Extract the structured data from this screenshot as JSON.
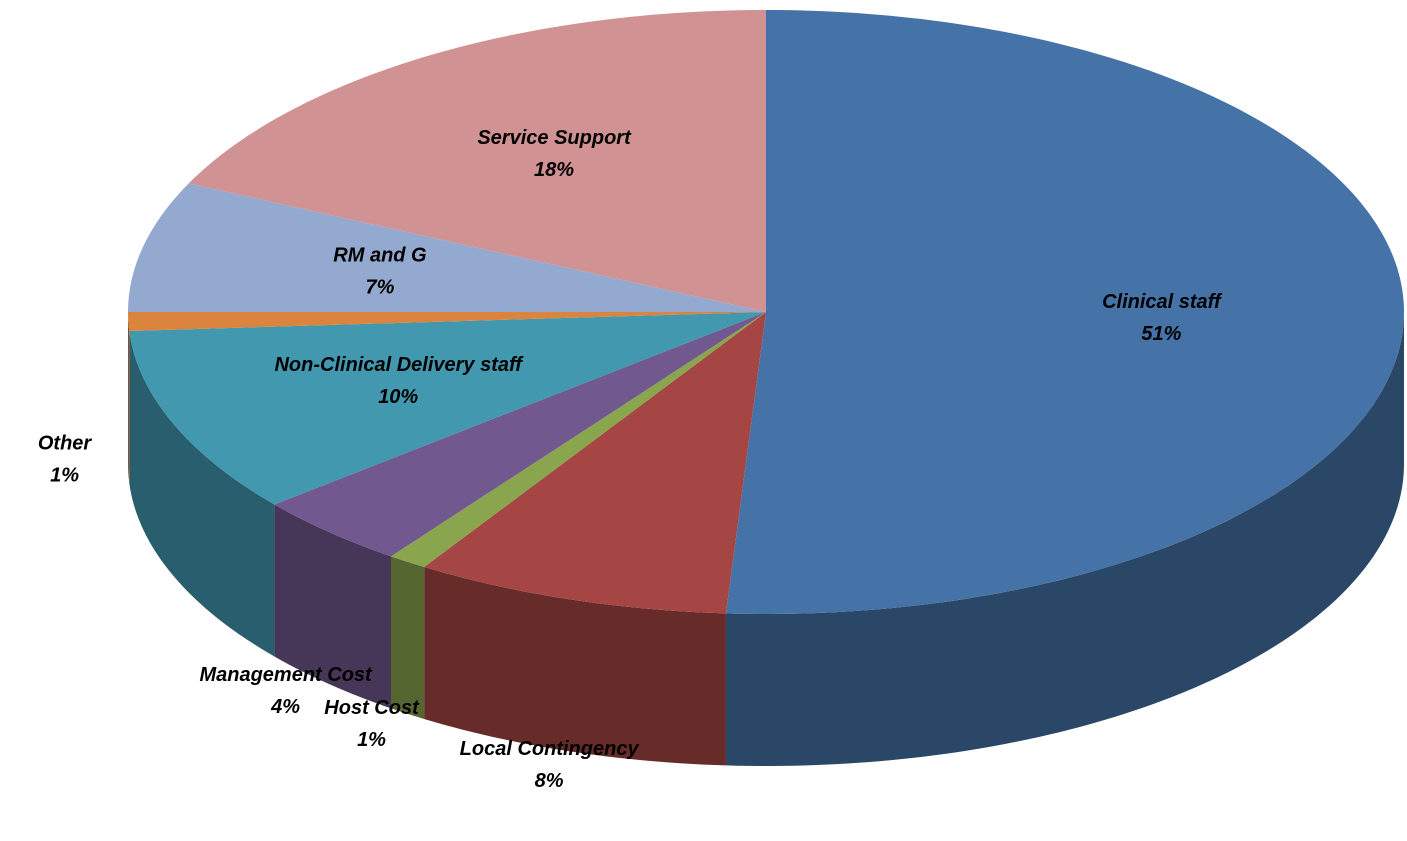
{
  "chart_data": {
    "type": "pie",
    "categories": [
      "Clinical staff",
      "Local Contingency",
      "Host Cost",
      "Management Cost",
      "Non-Clinical Delivery staff",
      "Other",
      "RM and G",
      "Service Support"
    ],
    "values": [
      51,
      8,
      1,
      4,
      10,
      1,
      7,
      18
    ],
    "value_labels": [
      "51%",
      "8%",
      "1%",
      "4%",
      "10%",
      "1%",
      "7%",
      "18%"
    ],
    "colors": [
      "#4572a7",
      "#a64644",
      "#89a54e",
      "#71588f",
      "#4198af",
      "#db843d",
      "#93a9cf",
      "#d09292"
    ]
  }
}
